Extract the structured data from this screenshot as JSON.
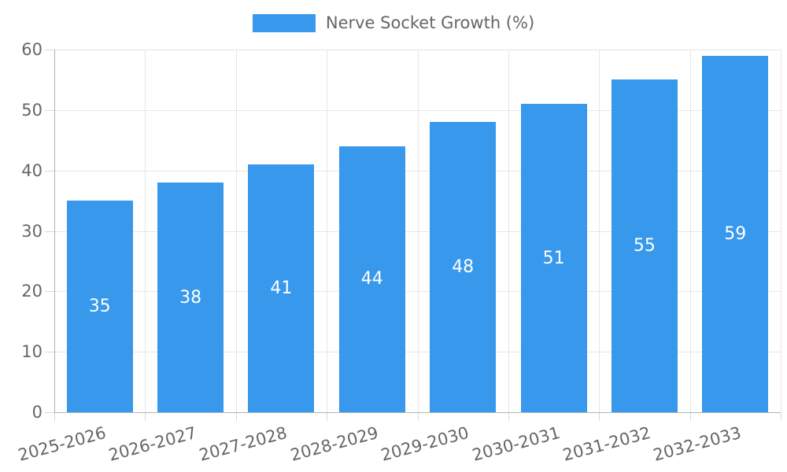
{
  "legend": {
    "label": "Nerve Socket Growth (%)",
    "marker_color": "#3898ec"
  },
  "chart_data": {
    "type": "bar",
    "title": "",
    "xlabel": "",
    "ylabel": "",
    "categories": [
      "2025-2026",
      "2026-2027",
      "2027-2028",
      "2028-2029",
      "2029-2030",
      "2030-2031",
      "2031-2032",
      "2032-2033"
    ],
    "series": [
      {
        "name": "Nerve Socket Growth (%)",
        "values": [
          35,
          38,
          41,
          44,
          48,
          51,
          55,
          59
        ],
        "color": "#3898ec"
      }
    ],
    "ylim": [
      0,
      60
    ],
    "yticks": [
      0,
      10,
      20,
      30,
      40,
      50,
      60
    ],
    "grid": true,
    "legend_position": "top",
    "value_labels": "inside-center",
    "value_label_color": "#ffffff",
    "xtick_rotation_deg": -15
  },
  "colors": {
    "bar": "#3898ec",
    "gridline": "#e6e6e6",
    "axis_border": "#b3b3b3",
    "tick_mark": "#d9d9d9",
    "tick_text": "#666666",
    "legend_text": "#666666",
    "background": "#ffffff"
  }
}
